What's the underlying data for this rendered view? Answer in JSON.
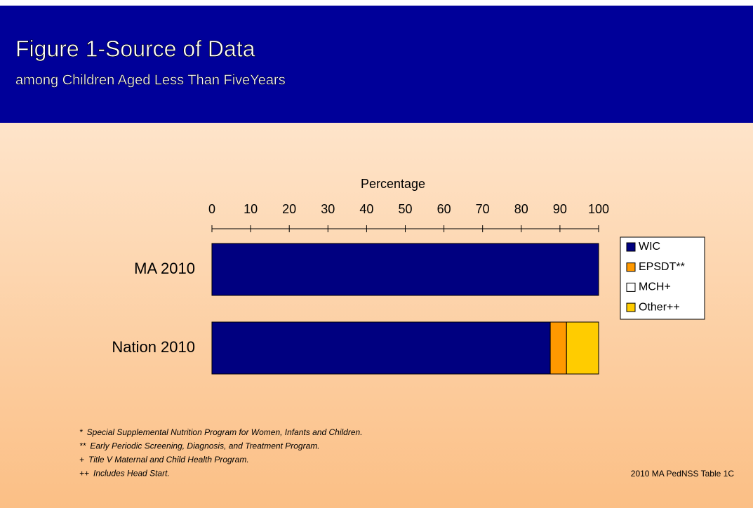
{
  "chart_data": {
    "type": "bar",
    "stacked": true,
    "title": "Figure 1-Source of Data",
    "subtitle": "among Children Aged  Less Than FiveYears",
    "x_label": "Percentage",
    "categories": [
      "MA 2010",
      "Nation 2010"
    ],
    "series": [
      {
        "name": "WIC",
        "color": "#000080",
        "values": [
          100,
          87.5
        ]
      },
      {
        "name": "EPSDT**",
        "color": "#ff9900",
        "values": [
          0,
          4.2
        ]
      },
      {
        "name": "MCH+",
        "color": "#ffffff",
        "values": [
          0,
          0
        ]
      },
      {
        "name": "Other++",
        "color": "#ffcc00",
        "values": [
          0,
          8.3
        ]
      }
    ],
    "xlim": [
      0,
      100
    ],
    "xticks": [
      0,
      10,
      20,
      30,
      40,
      50,
      60,
      70,
      80,
      90,
      100
    ],
    "legend": "right",
    "footnotes": [
      {
        "mark": "*",
        "text": "Special Supplemental  Nutrition Program for Women, Infants and Children."
      },
      {
        "mark": "**",
        "text": "Early Periodic Screening, Diagnosis, and Treatment Program."
      },
      {
        "mark": "+",
        "text": "Title V Maternal and Child Health Program."
      },
      {
        "mark": "++",
        "text": "Includes Head Start."
      }
    ],
    "source": "2010 MA PedNSS Table 1C"
  }
}
